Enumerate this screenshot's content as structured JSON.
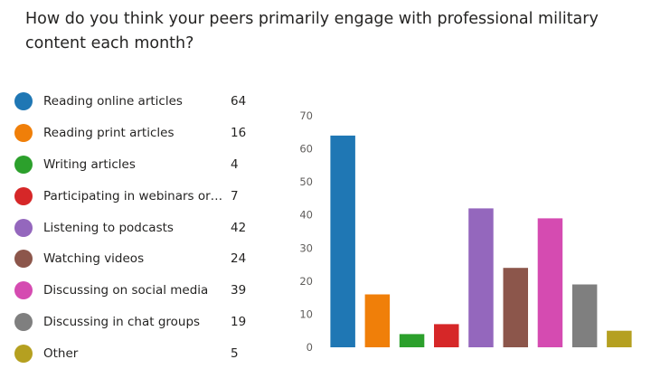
{
  "question": "How do you think your peers primarily engage with professional military content each month?",
  "colors": [
    "#1f77b4",
    "#f07f09",
    "#2ca02c",
    "#d62728",
    "#9467bd",
    "#8c564b",
    "#d54bb1",
    "#7f7f7f",
    "#b5a020"
  ],
  "legend": [
    {
      "label": "Reading online articles",
      "value": "64"
    },
    {
      "label": "Reading print articles",
      "value": "16"
    },
    {
      "label": "Writing articles",
      "value": "4"
    },
    {
      "label": "Participating in webinars or onli...",
      "value": "7"
    },
    {
      "label": "Listening to podcasts",
      "value": "42"
    },
    {
      "label": "Watching videos",
      "value": "24"
    },
    {
      "label": "Discussing on social media",
      "value": "39"
    },
    {
      "label": "Discussing in chat groups",
      "value": "19"
    },
    {
      "label": "Other",
      "value": "5"
    }
  ],
  "chart_data": {
    "type": "bar",
    "categories": [
      "Reading online articles",
      "Reading print articles",
      "Writing articles",
      "Participating in webinars or onli...",
      "Listening to podcasts",
      "Watching videos",
      "Discussing on social media",
      "Discussing in chat groups",
      "Other"
    ],
    "values": [
      64,
      16,
      4,
      7,
      42,
      24,
      39,
      19,
      5
    ],
    "ylim": [
      0,
      70
    ],
    "yticks": [
      "0",
      "10",
      "20",
      "30",
      "40",
      "50",
      "60",
      "70"
    ],
    "grid": false,
    "legend_position": "left"
  }
}
